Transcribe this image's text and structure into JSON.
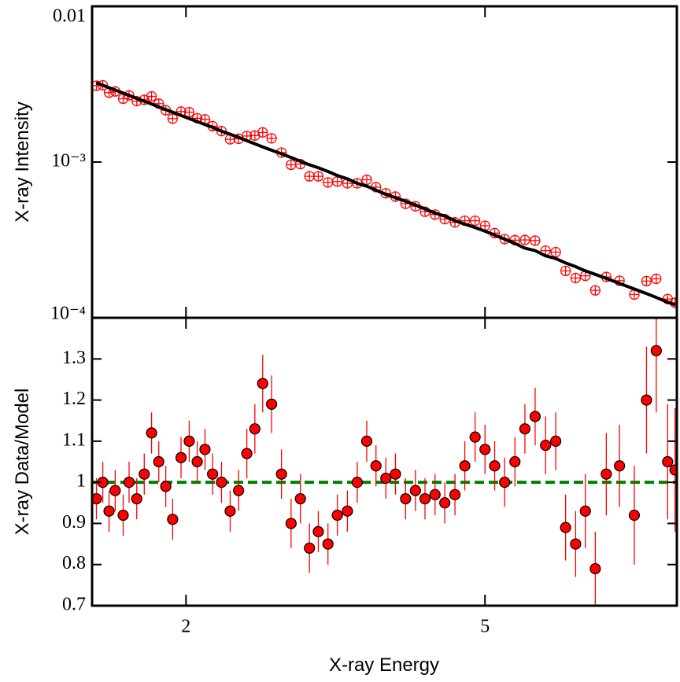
{
  "chart_data": [
    {
      "type": "scatter",
      "ylabel": "X-ray Intensity",
      "log_y": true,
      "log_x": true,
      "xlim": [
        1.5,
        9
      ],
      "xticks": [
        2,
        5
      ],
      "ylim": [
        0.0001,
        0.01
      ],
      "yticks": [
        0.01,
        {
          "value": 0.001,
          "label": "10⁻³"
        },
        {
          "value": 0.0001,
          "label": "10⁻⁴"
        }
      ],
      "x": [
        1.52,
        1.55,
        1.58,
        1.61,
        1.65,
        1.68,
        1.72,
        1.76,
        1.8,
        1.84,
        1.88,
        1.92,
        1.97,
        2.02,
        2.07,
        2.12,
        2.17,
        2.23,
        2.29,
        2.35,
        2.41,
        2.47,
        2.53,
        2.6,
        2.68,
        2.76,
        2.84,
        2.92,
        3.0,
        3.09,
        3.18,
        3.28,
        3.38,
        3.48,
        3.58,
        3.69,
        3.8,
        3.92,
        4.04,
        4.16,
        4.29,
        4.42,
        4.56,
        4.7,
        4.85,
        5.0,
        5.15,
        5.31,
        5.48,
        5.65,
        5.83,
        6.02,
        6.21,
        6.4,
        6.6,
        6.8,
        7.01,
        7.25,
        7.55,
        7.9,
        8.2,
        8.45,
        8.75,
        8.95
      ],
      "series": [
        {
          "kind": "points",
          "color": "#ff0000",
          "values": [
            0.00309,
            0.00311,
            0.00279,
            0.00284,
            0.00255,
            0.00268,
            0.00246,
            0.00251,
            0.00264,
            0.00237,
            0.00215,
            0.0019,
            0.00211,
            0.00209,
            0.00191,
            0.00188,
            0.0017,
            0.00158,
            0.0014,
            0.00141,
            0.00147,
            0.00148,
            0.00155,
            0.00142,
            0.00115,
            0.00096,
            0.00097,
            0.00081,
            0.00081,
            0.00074,
            0.00075,
            0.00073,
            0.00073,
            0.00077,
            0.00069,
            0.00063,
            0.0006,
            0.00054,
            0.00052,
            0.00048,
            0.00046,
            0.00043,
            0.00041,
            0.00042,
            0.00042,
            0.00039,
            0.00035,
            0.00032,
            0.000315,
            0.000316,
            0.000313,
            0.00027,
            0.000264,
            0.0002,
            0.00018,
            0.000186,
            0.00015,
            0.000183,
            0.000173,
            0.000141,
            0.000172,
            0.000178,
            0.000132,
            0.000125
          ]
        },
        {
          "kind": "line",
          "color": "#000000",
          "values": [
            0.00322,
            0.00311,
            0.003,
            0.0029,
            0.00277,
            0.00268,
            0.00256,
            0.00246,
            0.00236,
            0.00226,
            0.00217,
            0.00209,
            0.00199,
            0.0019,
            0.00182,
            0.00174,
            0.00167,
            0.00158,
            0.00151,
            0.00144,
            0.00137,
            0.00131,
            0.00125,
            0.00119,
            0.00113,
            0.00107,
            0.00101,
            0.00096,
            0.00092,
            0.00087,
            0.00082,
            0.00078,
            0.00073,
            0.0007,
            0.00066,
            0.00062,
            0.00059,
            0.00056,
            0.00053,
            0.0005,
            0.00047,
            0.00045,
            0.00042,
            0.0004,
            0.00038,
            0.00036,
            0.00034,
            0.00032,
            0.0003,
            0.00028,
            0.00027,
            0.00025,
            0.00024,
            0.000225,
            0.000213,
            0.0002,
            0.00019,
            0.000179,
            0.000166,
            0.000153,
            0.000143,
            0.000135,
            0.000126,
            0.000121
          ]
        }
      ]
    },
    {
      "type": "scatter",
      "ylabel": "X-ray Data/Model",
      "xlabel": "X-ray Energy",
      "log_x": true,
      "xlim": [
        1.5,
        9
      ],
      "xticks": [
        2,
        5
      ],
      "ylim": [
        0.7,
        1.4
      ],
      "yticks": [
        0.7,
        0.8,
        0.9,
        1,
        1.1,
        1.2,
        1.3
      ],
      "reference_line": {
        "value": 1,
        "color": "#008000"
      },
      "x": [
        1.52,
        1.55,
        1.58,
        1.61,
        1.65,
        1.68,
        1.72,
        1.76,
        1.8,
        1.84,
        1.88,
        1.92,
        1.97,
        2.02,
        2.07,
        2.12,
        2.17,
        2.23,
        2.29,
        2.35,
        2.41,
        2.47,
        2.53,
        2.6,
        2.68,
        2.76,
        2.84,
        2.92,
        3.0,
        3.09,
        3.18,
        3.28,
        3.38,
        3.48,
        3.58,
        3.69,
        3.8,
        3.92,
        4.04,
        4.16,
        4.29,
        4.42,
        4.56,
        4.7,
        4.85,
        5.0,
        5.15,
        5.31,
        5.48,
        5.65,
        5.83,
        6.02,
        6.21,
        6.4,
        6.6,
        6.8,
        7.01,
        7.25,
        7.55,
        7.9,
        8.2,
        8.45,
        8.75,
        8.95
      ],
      "series": [
        {
          "kind": "errorpoints",
          "color": "#ff0000",
          "values": [
            0.96,
            1.0,
            0.93,
            0.98,
            0.92,
            1.0,
            0.96,
            1.02,
            1.12,
            1.05,
            0.99,
            0.91,
            1.06,
            1.1,
            1.05,
            1.08,
            1.02,
            1.0,
            0.93,
            0.98,
            1.07,
            1.13,
            1.24,
            1.19,
            1.02,
            0.9,
            0.96,
            0.84,
            0.88,
            0.85,
            0.92,
            0.93,
            1.0,
            1.1,
            1.04,
            1.01,
            1.02,
            0.96,
            0.98,
            0.96,
            0.97,
            0.95,
            0.97,
            1.04,
            1.11,
            1.08,
            1.04,
            1.0,
            1.05,
            1.13,
            1.16,
            1.09,
            1.1,
            0.89,
            0.85,
            0.93,
            0.79,
            1.02,
            1.04,
            0.92,
            1.2,
            1.32,
            1.05,
            1.03
          ],
          "errors": [
            0.05,
            0.05,
            0.05,
            0.05,
            0.05,
            0.05,
            0.05,
            0.05,
            0.05,
            0.05,
            0.05,
            0.05,
            0.05,
            0.05,
            0.05,
            0.05,
            0.05,
            0.05,
            0.05,
            0.05,
            0.06,
            0.06,
            0.07,
            0.07,
            0.06,
            0.06,
            0.06,
            0.06,
            0.05,
            0.05,
            0.05,
            0.05,
            0.05,
            0.05,
            0.05,
            0.05,
            0.05,
            0.05,
            0.05,
            0.05,
            0.05,
            0.05,
            0.05,
            0.06,
            0.06,
            0.06,
            0.06,
            0.06,
            0.06,
            0.06,
            0.07,
            0.07,
            0.07,
            0.08,
            0.08,
            0.09,
            0.09,
            0.1,
            0.1,
            0.12,
            0.13,
            0.15,
            0.14,
            0.15
          ]
        }
      ]
    }
  ]
}
